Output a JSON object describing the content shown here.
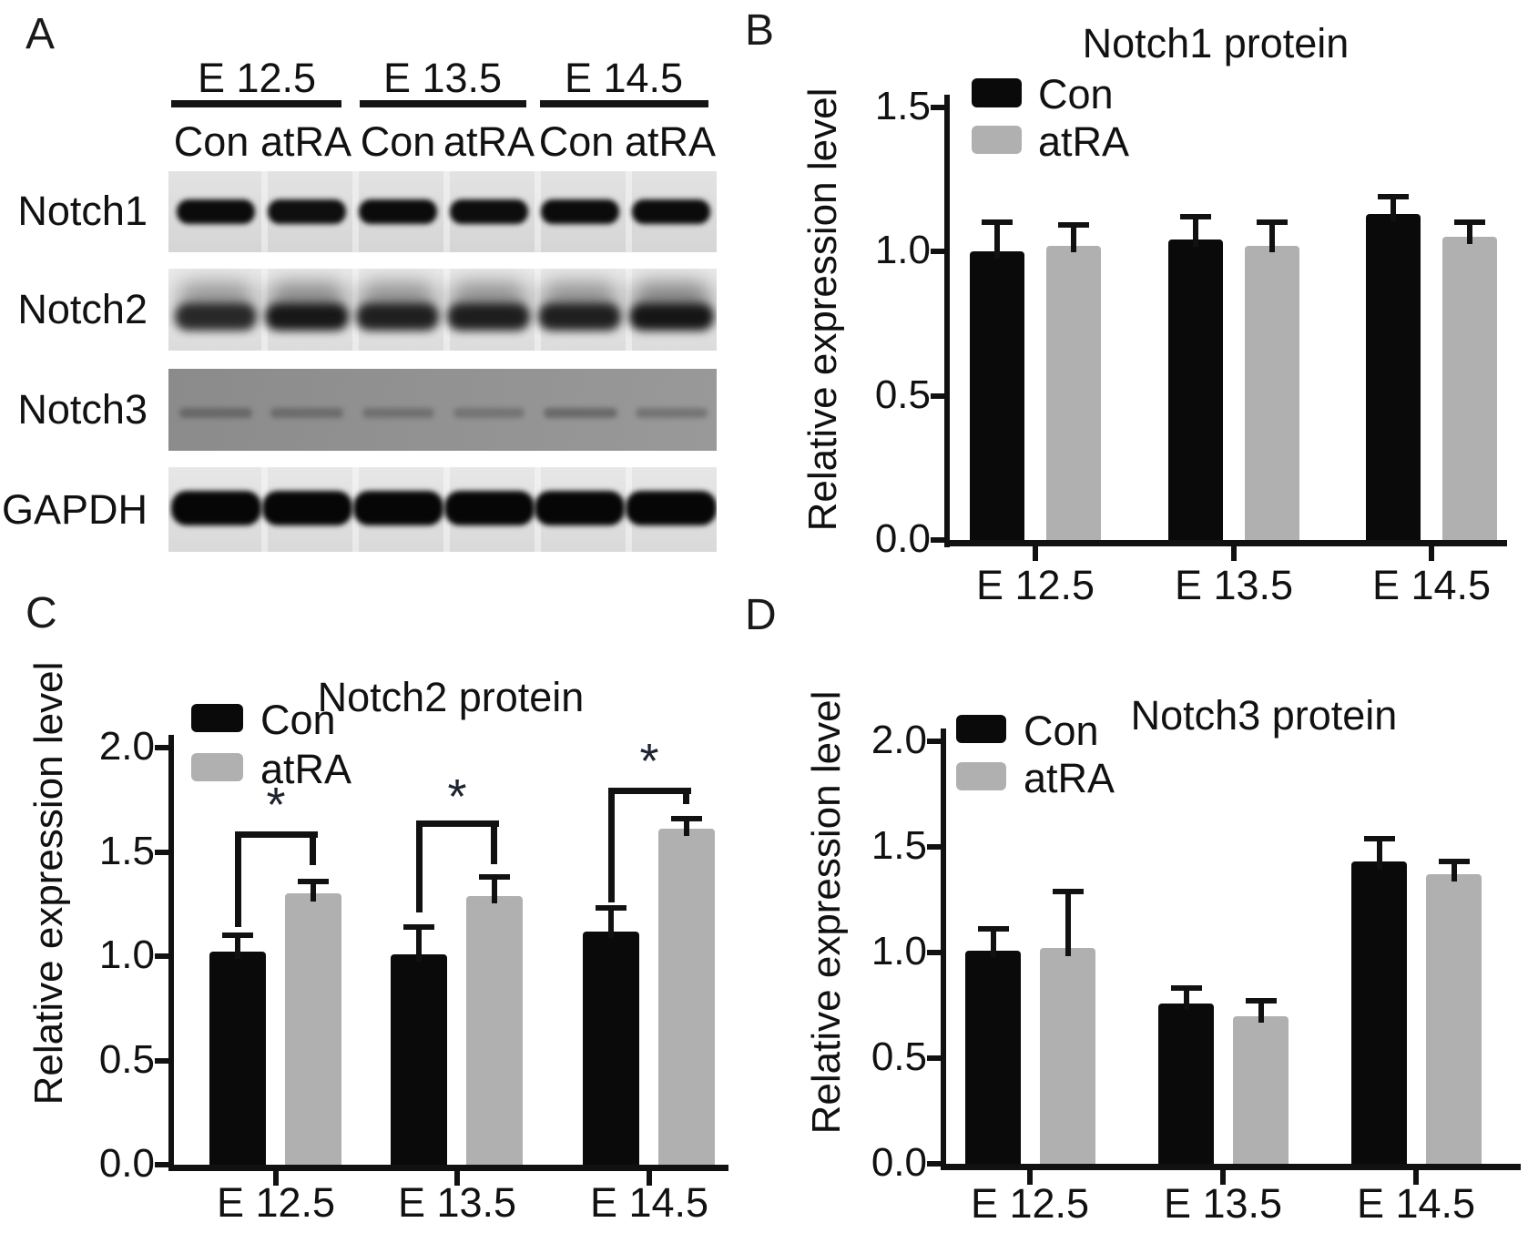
{
  "figure_background": "#ffffff",
  "axis_color": "#111111",
  "panel_a": {
    "letter": "A",
    "group_labels": [
      "E 12.5",
      "E 13.5",
      "E 14.5"
    ],
    "lane_labels": [
      "Con",
      "atRA",
      "Con",
      "atRA",
      "Con",
      "atRA"
    ],
    "rows": [
      {
        "label": "Notch1",
        "style": "sharp",
        "intensities": [
          0.95,
          0.92,
          0.95,
          0.93,
          0.96,
          0.97
        ]
      },
      {
        "label": "Notch2",
        "style": "fuzzy",
        "intensities": [
          0.8,
          0.93,
          0.86,
          0.88,
          0.86,
          0.98
        ]
      },
      {
        "label": "Notch3",
        "style": "faint",
        "intensities": [
          0.55,
          0.5,
          0.45,
          0.42,
          0.58,
          0.45
        ]
      },
      {
        "label": "GAPDH",
        "style": "strong",
        "intensities": [
          0.96,
          0.96,
          0.95,
          0.95,
          0.98,
          1.0
        ]
      }
    ]
  },
  "chart_data": [
    {
      "panel_letter": "B",
      "type": "bar",
      "title": "Notch1 protein",
      "ylabel": "Relative expression level",
      "xlabel": "",
      "categories": [
        "E 12.5",
        "E 13.5",
        "E 14.5"
      ],
      "series": [
        {
          "name": "Con",
          "color": "#0a0a0a",
          "values": [
            1.0,
            1.04,
            1.13
          ],
          "errors": [
            0.1,
            0.08,
            0.06
          ]
        },
        {
          "name": "atRA",
          "color": "#b0b0b0",
          "values": [
            1.02,
            1.02,
            1.05
          ],
          "errors": [
            0.07,
            0.08,
            0.05
          ]
        }
      ],
      "ylim": [
        0,
        1.5
      ],
      "ytick_step": 0.5,
      "grid": false,
      "legend_position": "top-left",
      "significance": []
    },
    {
      "panel_letter": "C",
      "type": "bar",
      "title": "Notch2 protein",
      "ylabel": "Relative expression level",
      "xlabel": "",
      "categories": [
        "E 12.5",
        "E 13.5",
        "E 14.5"
      ],
      "series": [
        {
          "name": "Con",
          "color": "#0a0a0a",
          "values": [
            1.02,
            1.01,
            1.12
          ],
          "errors": [
            0.08,
            0.13,
            0.11
          ]
        },
        {
          "name": "atRA",
          "color": "#b0b0b0",
          "values": [
            1.3,
            1.29,
            1.61
          ],
          "errors": [
            0.06,
            0.09,
            0.05
          ]
        }
      ],
      "ylim": [
        0,
        2.0
      ],
      "ytick_step": 0.5,
      "grid": false,
      "legend_position": "top-left",
      "significance": [
        {
          "group": 0,
          "label": "*",
          "bracket_top": 1.6,
          "drop_left_to": 1.14,
          "drop_right_to": 1.44,
          "label_y": 1.73
        },
        {
          "group": 1,
          "label": "*",
          "bracket_top": 1.65,
          "drop_left_to": 1.21,
          "drop_right_to": 1.44,
          "label_y": 1.77
        },
        {
          "group": 2,
          "label": "*",
          "bracket_top": 1.81,
          "drop_left_to": 1.26,
          "drop_right_to": 1.73,
          "label_y": 1.94
        }
      ]
    },
    {
      "panel_letter": "D",
      "type": "bar",
      "title": "Notch3 protein",
      "ylabel": "Relative expression level",
      "xlabel": "",
      "categories": [
        "E 12.5",
        "E 13.5",
        "E 14.5"
      ],
      "series": [
        {
          "name": "Con",
          "color": "#0a0a0a",
          "values": [
            1.01,
            0.76,
            1.43
          ],
          "errors": [
            0.1,
            0.07,
            0.11
          ]
        },
        {
          "name": "atRA",
          "color": "#b0b0b0",
          "values": [
            1.02,
            0.7,
            1.37
          ],
          "errors": [
            0.27,
            0.07,
            0.06
          ]
        }
      ],
      "ylim": [
        0,
        2.0
      ],
      "ytick_step": 0.5,
      "grid": false,
      "legend_position": "top-left",
      "significance": []
    }
  ]
}
